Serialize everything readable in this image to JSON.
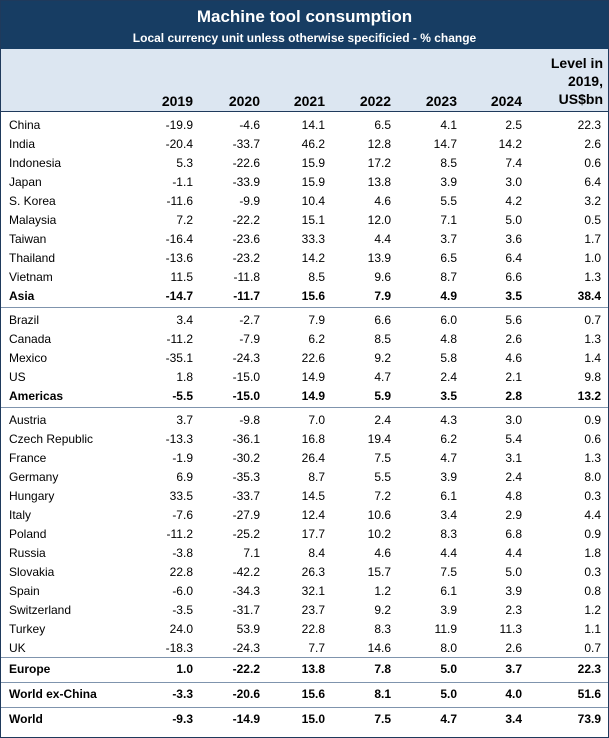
{
  "title": "Machine tool consumption",
  "subtitle": "Local currency unit unless otherwise specificied - % change",
  "columns": [
    "2019",
    "2020",
    "2021",
    "2022",
    "2023",
    "2024"
  ],
  "level_header": [
    "Level in",
    "2019,",
    "US$bn"
  ],
  "rows": [
    {
      "name": "China",
      "values": [
        "-19.9",
        "-4.6",
        "14.1",
        "6.5",
        "4.1",
        "2.5"
      ],
      "level": "22.3"
    },
    {
      "name": "India",
      "values": [
        "-20.4",
        "-33.7",
        "46.2",
        "12.8",
        "14.7",
        "14.2"
      ],
      "level": "2.6"
    },
    {
      "name": "Indonesia",
      "values": [
        "5.3",
        "-22.6",
        "15.9",
        "17.2",
        "8.5",
        "7.4"
      ],
      "level": "0.6"
    },
    {
      "name": "Japan",
      "values": [
        "-1.1",
        "-33.9",
        "15.9",
        "13.8",
        "3.9",
        "3.0"
      ],
      "level": "6.4"
    },
    {
      "name": "S. Korea",
      "values": [
        "-11.6",
        "-9.9",
        "10.4",
        "4.6",
        "5.5",
        "4.2"
      ],
      "level": "3.2"
    },
    {
      "name": "Malaysia",
      "values": [
        "7.2",
        "-22.2",
        "15.1",
        "12.0",
        "7.1",
        "5.0"
      ],
      "level": "0.5"
    },
    {
      "name": "Taiwan",
      "values": [
        "-16.4",
        "-23.6",
        "33.3",
        "4.4",
        "3.7",
        "3.6"
      ],
      "level": "1.7"
    },
    {
      "name": "Thailand",
      "values": [
        "-13.6",
        "-23.2",
        "14.2",
        "13.9",
        "6.5",
        "6.4"
      ],
      "level": "1.0"
    },
    {
      "name": "Vietnam",
      "values": [
        "11.5",
        "-11.8",
        "8.5",
        "9.6",
        "8.7",
        "6.6"
      ],
      "level": "1.3"
    },
    {
      "name": "Asia",
      "values": [
        "-14.7",
        "-11.7",
        "15.6",
        "7.9",
        "4.9",
        "3.5"
      ],
      "level": "38.4",
      "bold": true
    },
    {
      "name": "Brazil",
      "values": [
        "3.4",
        "-2.7",
        "7.9",
        "6.6",
        "6.0",
        "5.6"
      ],
      "level": "0.7"
    },
    {
      "name": "Canada",
      "values": [
        "-11.2",
        "-7.9",
        "6.2",
        "8.5",
        "4.8",
        "2.6"
      ],
      "level": "1.3"
    },
    {
      "name": "Mexico",
      "values": [
        "-35.1",
        "-24.3",
        "22.6",
        "9.2",
        "5.8",
        "4.6"
      ],
      "level": "1.4"
    },
    {
      "name": "US",
      "values": [
        "1.8",
        "-15.0",
        "14.9",
        "4.7",
        "2.4",
        "2.1"
      ],
      "level": "9.8"
    },
    {
      "name": "Americas",
      "values": [
        "-5.5",
        "-15.0",
        "14.9",
        "5.9",
        "3.5",
        "2.8"
      ],
      "level": "13.2",
      "bold": true
    },
    {
      "name": "Austria",
      "values": [
        "3.7",
        "-9.8",
        "7.0",
        "2.4",
        "4.3",
        "3.0"
      ],
      "level": "0.9"
    },
    {
      "name": "Czech Republic",
      "values": [
        "-13.3",
        "-36.1",
        "16.8",
        "19.4",
        "6.2",
        "5.4"
      ],
      "level": "0.6"
    },
    {
      "name": "France",
      "values": [
        "-1.9",
        "-30.2",
        "26.4",
        "7.5",
        "4.7",
        "3.1"
      ],
      "level": "1.3"
    },
    {
      "name": "Germany",
      "values": [
        "6.9",
        "-35.3",
        "8.7",
        "5.5",
        "3.9",
        "2.4"
      ],
      "level": "8.0"
    },
    {
      "name": "Hungary",
      "values": [
        "33.5",
        "-33.7",
        "14.5",
        "7.2",
        "6.1",
        "4.8"
      ],
      "level": "0.3"
    },
    {
      "name": "Italy",
      "values": [
        "-7.6",
        "-27.9",
        "12.4",
        "10.6",
        "3.4",
        "2.9"
      ],
      "level": "4.4"
    },
    {
      "name": "Poland",
      "values": [
        "-11.2",
        "-25.2",
        "17.7",
        "10.2",
        "8.3",
        "6.8"
      ],
      "level": "0.9"
    },
    {
      "name": "Russia",
      "values": [
        "-3.8",
        "7.1",
        "8.4",
        "4.6",
        "4.4",
        "4.4"
      ],
      "level": "1.8"
    },
    {
      "name": "Slovakia",
      "values": [
        "22.8",
        "-42.2",
        "26.3",
        "15.7",
        "7.5",
        "5.0"
      ],
      "level": "0.3"
    },
    {
      "name": "Spain",
      "values": [
        "-6.0",
        "-34.3",
        "32.1",
        "1.2",
        "6.1",
        "3.9"
      ],
      "level": "0.8"
    },
    {
      "name": "Switzerland",
      "values": [
        "-3.5",
        "-31.7",
        "23.7",
        "9.2",
        "3.9",
        "2.3"
      ],
      "level": "1.2"
    },
    {
      "name": "Turkey",
      "values": [
        "24.0",
        "53.9",
        "22.8",
        "8.3",
        "11.9",
        "11.3"
      ],
      "level": "1.1"
    },
    {
      "name": "UK",
      "values": [
        "-18.3",
        "-24.3",
        "7.7",
        "14.6",
        "8.0",
        "2.6"
      ],
      "level": "0.7"
    },
    {
      "name": "Europe",
      "values": [
        "1.0",
        "-22.2",
        "13.8",
        "7.8",
        "5.0",
        "3.7"
      ],
      "level": "22.3",
      "bold": true
    },
    {
      "name": "World ex-China",
      "values": [
        "-3.3",
        "-20.6",
        "15.6",
        "8.1",
        "5.0",
        "4.0"
      ],
      "level": "51.6",
      "bold": true
    },
    {
      "name": "World",
      "values": [
        "-9.3",
        "-14.9",
        "15.0",
        "7.5",
        "4.7",
        "3.4"
      ],
      "level": "73.9",
      "bold": true
    }
  ]
}
